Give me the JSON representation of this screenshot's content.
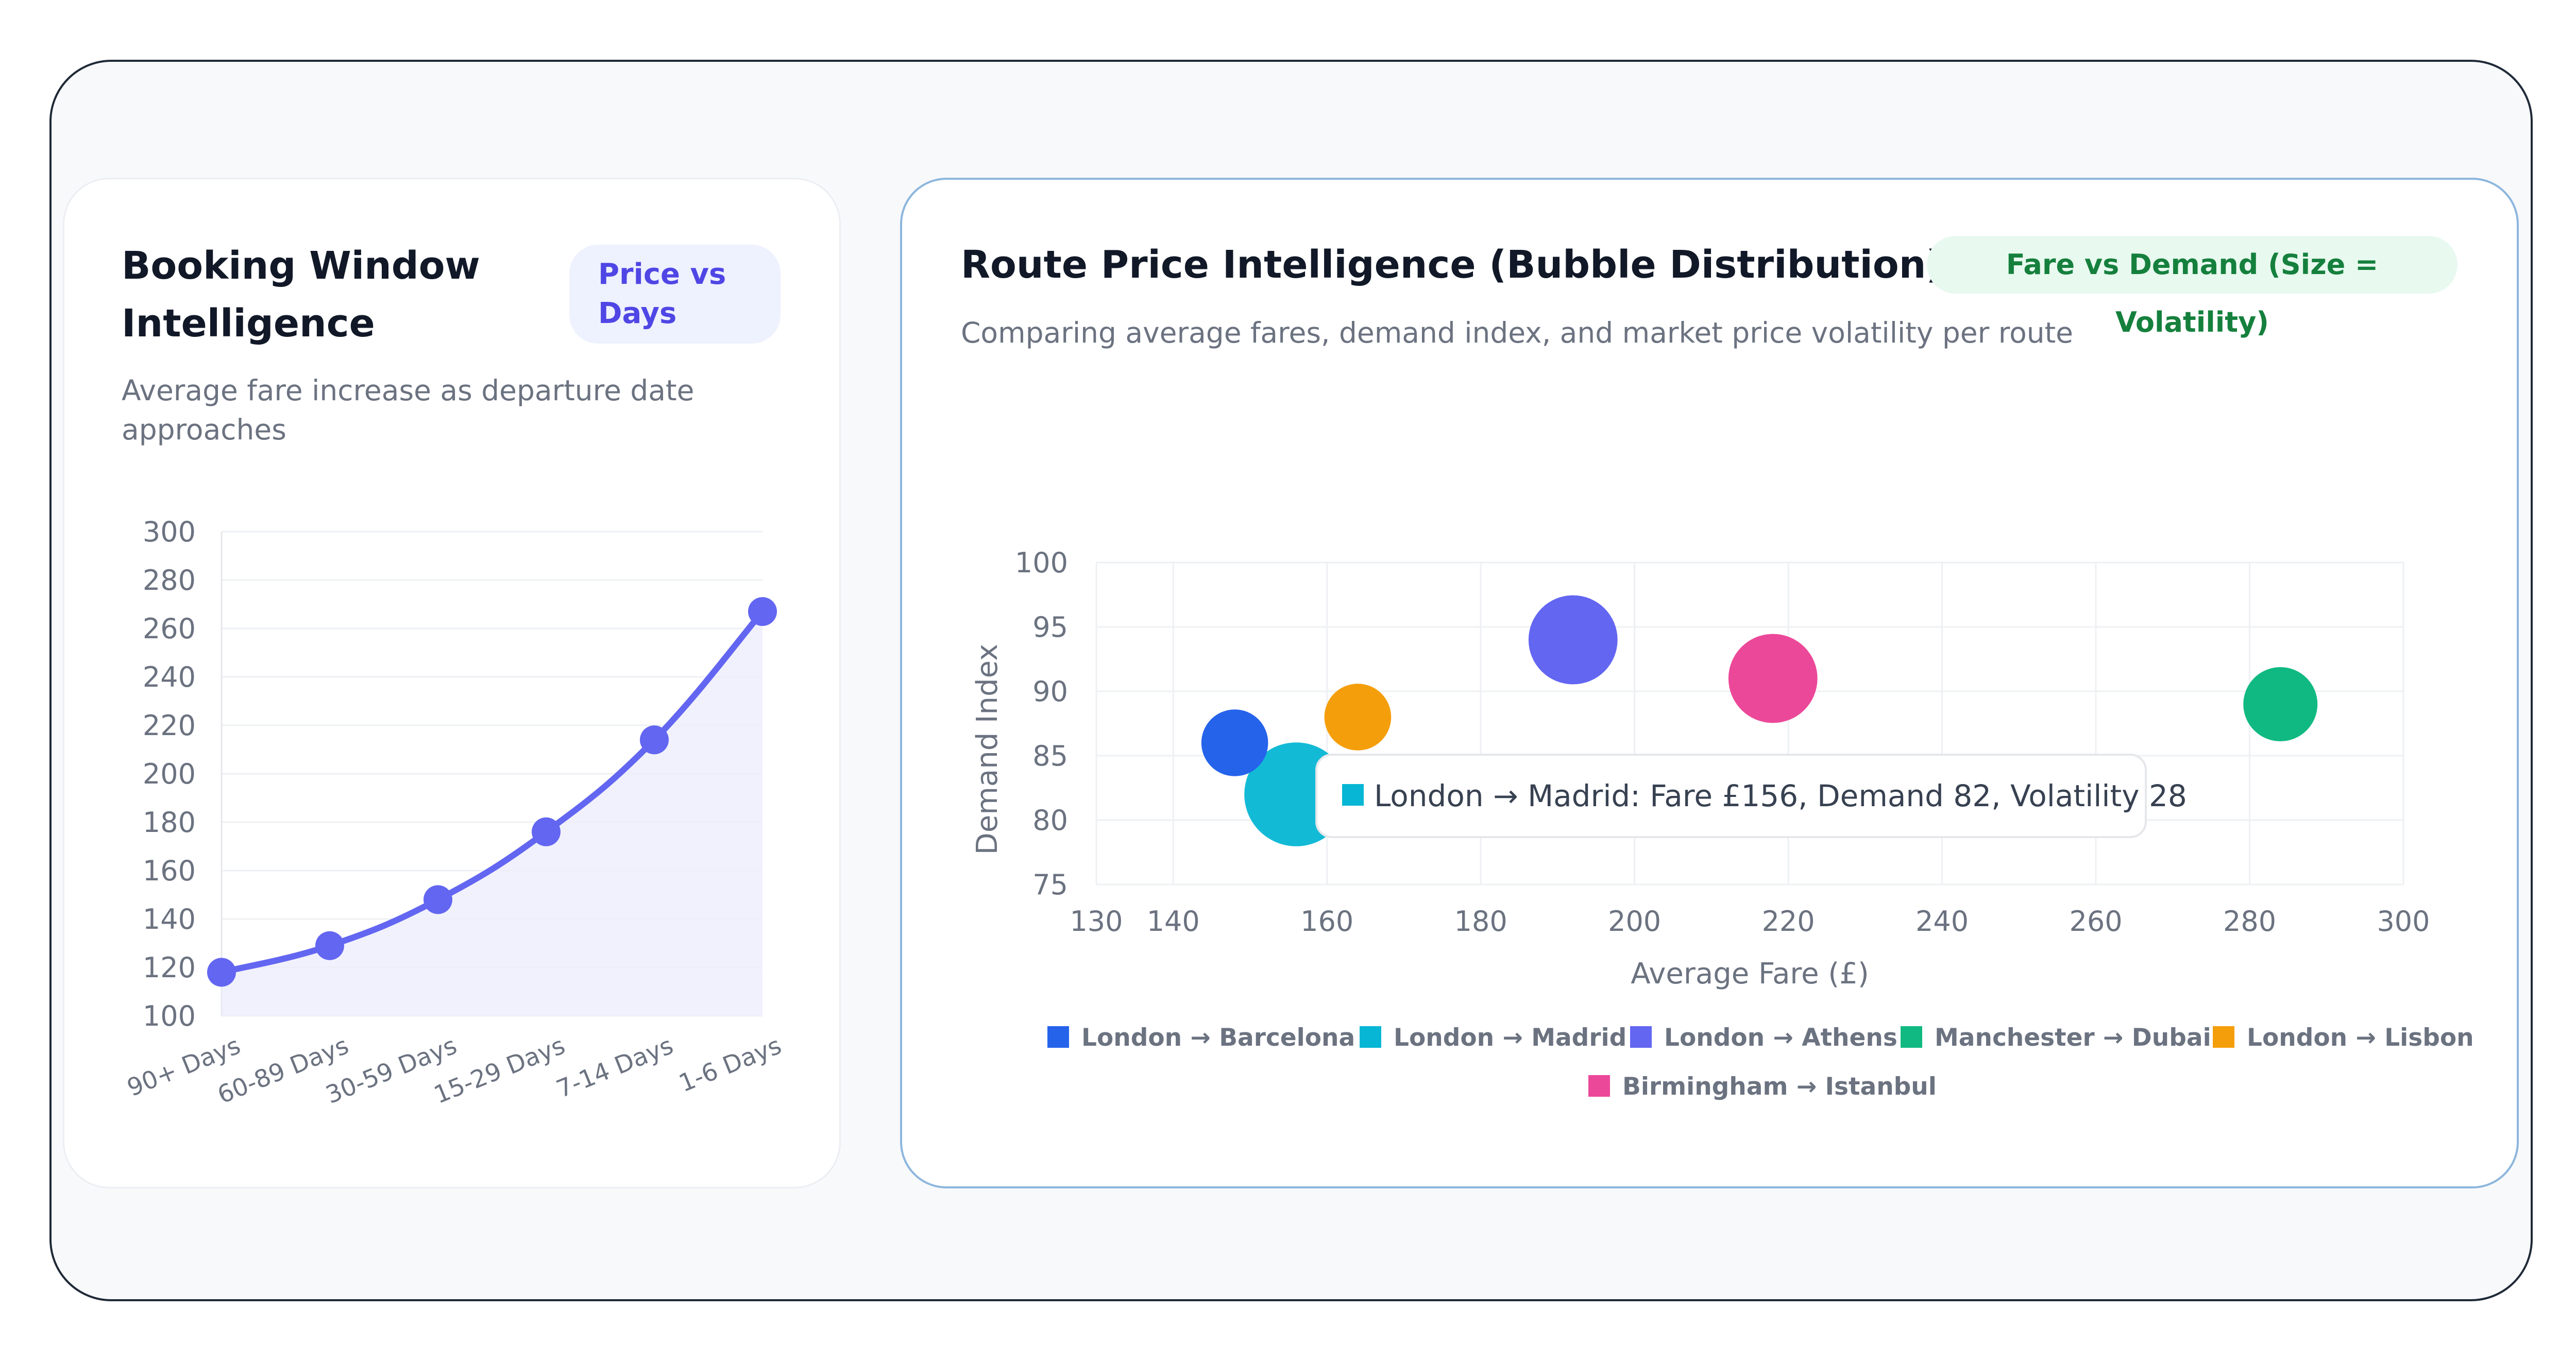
{
  "left_card": {
    "title_line1": "Booking Window",
    "title_line2": "Intelligence",
    "badge_line1": "Price vs",
    "badge_line2": "Days",
    "subtitle_line1": "Average fare increase as departure date",
    "subtitle_line2": "approaches"
  },
  "right_card": {
    "title": "Route Price Intelligence (Bubble Distribution)",
    "badge": "Fare vs Demand (Size = Volatility)",
    "subtitle": "Comparing average fares, demand index, and market price volatility per route",
    "tooltip": "London → Madrid: Fare £156, Demand 82, Volatility 28"
  },
  "colors": {
    "line": "#6366f1",
    "line_fill": "#eeeefc",
    "grid": "#eef0f3"
  },
  "chart_data": [
    {
      "type": "line",
      "categories": [
        "90+ Days",
        "60-89 Days",
        "30-59 Days",
        "15-29 Days",
        "7-14 Days",
        "1-6 Days"
      ],
      "values": [
        118,
        129,
        148,
        176,
        214,
        267
      ],
      "ylim": [
        100,
        300
      ],
      "yticks": [
        100,
        120,
        140,
        160,
        180,
        200,
        220,
        240,
        260,
        280,
        300
      ],
      "fill": true,
      "grid": true
    },
    {
      "type": "scatter",
      "xlabel": "Average Fare (£)",
      "ylabel": "Demand Index",
      "xlim": [
        130,
        300
      ],
      "ylim": [
        75,
        100
      ],
      "xticks": [
        130,
        140,
        160,
        180,
        200,
        220,
        240,
        260,
        280,
        300
      ],
      "yticks": [
        75,
        80,
        85,
        90,
        95,
        100
      ],
      "grid": true,
      "legend_position": "bottom",
      "series": [
        {
          "name": "London → Barcelona",
          "color": "#2563eb",
          "x": 148,
          "y": 86,
          "volatility": 18
        },
        {
          "name": "London → Madrid",
          "color": "#06b6d4",
          "x": 156,
          "y": 82,
          "volatility": 28
        },
        {
          "name": "London → Athens",
          "color": "#6366f1",
          "x": 192,
          "y": 94,
          "volatility": 24
        },
        {
          "name": "Manchester → Dubai",
          "color": "#10b981",
          "x": 284,
          "y": 89,
          "volatility": 20
        },
        {
          "name": "London → Lisbon",
          "color": "#f59e0b",
          "x": 164,
          "y": 88,
          "volatility": 18
        },
        {
          "name": "Birmingham → Istanbul",
          "color": "#ec4899",
          "x": 218,
          "y": 91,
          "volatility": 24
        }
      ]
    }
  ]
}
